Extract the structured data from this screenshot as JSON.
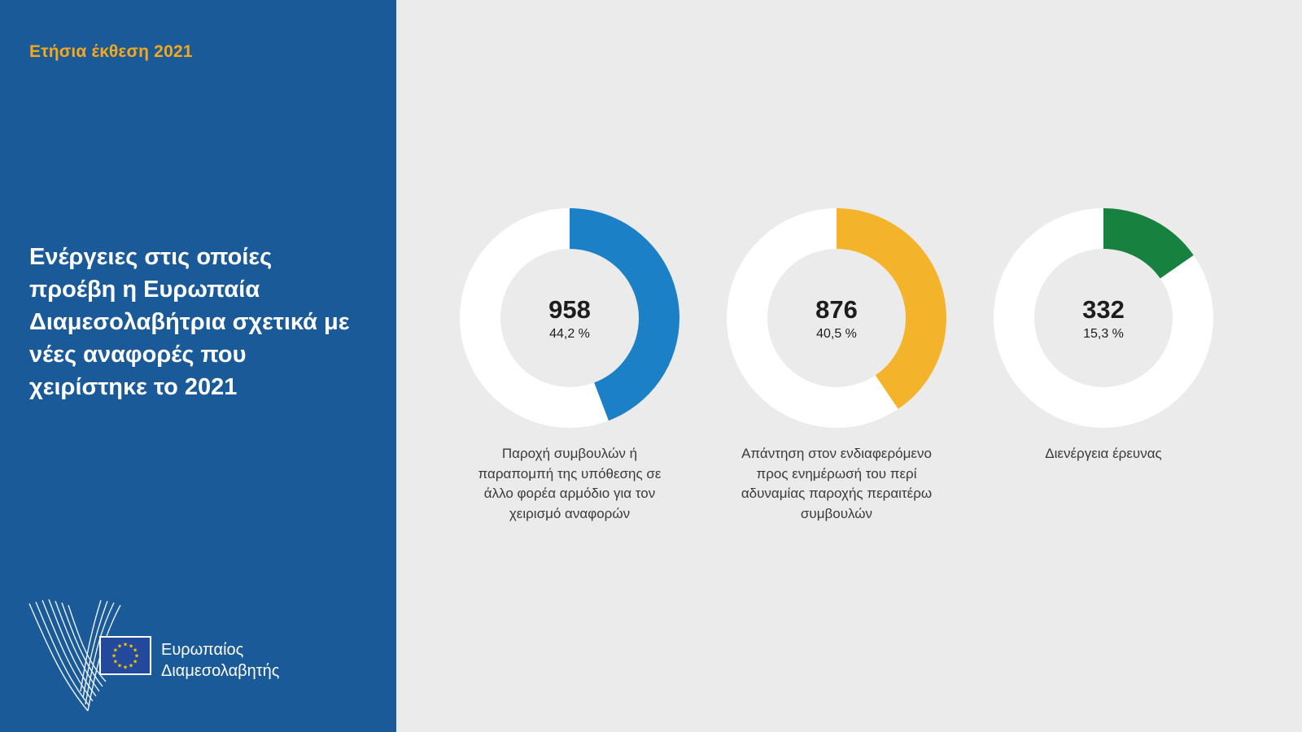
{
  "sidebar": {
    "eyebrow": "Ετήσια έκθεση 2021",
    "title": "Ενέργειες στις οποίες προέβη η Ευρωπαία Διαμεσολαβήτρια σχετικά με νέες αναφορές που χειρίστηκε το 2021",
    "logo": {
      "line1": "Ευρωπαίος",
      "line2": "Διαμεσολαβητής"
    }
  },
  "colors": {
    "sidebar_bg": "#1a5a98",
    "eyebrow_text": "#f5a81c",
    "content_bg": "#ebebeb",
    "donut_ring": "#ffffff",
    "flag_blue": "#23499c",
    "flag_stars": "#ffcc00"
  },
  "chart_data": {
    "type": "pie",
    "title": "Ενέργειες στις οποίες προέβη η Ευρωπαία Διαμεσολαβήτρια σχετικά με νέες αναφορές που χειρίστηκε το 2021",
    "subtitle": "Ετήσια έκθεση 2021",
    "legend_position": "below-each-donut",
    "donut_style": {
      "start_angle_deg": 0,
      "direction": "clockwise",
      "ring_color": "#ffffff"
    },
    "series": [
      {
        "label": "Παροχή συμβουλών ή παραπομπή της υπόθεσης σε άλλο φορέα αρμόδιο για τον χειρισμό αναφορών",
        "value": 958,
        "value_label": "958",
        "pct": 44.2,
        "pct_label": "44,2 %",
        "color": "#1c80c6"
      },
      {
        "label": "Απάντηση στον ενδιαφερόμενο προς ενημέρωσή του περί αδυναμίας παροχής περαιτέρω συμβουλών",
        "value": 876,
        "value_label": "876",
        "pct": 40.5,
        "pct_label": "40,5 %",
        "color": "#f3b32b"
      },
      {
        "label": "Διενέργεια έρευνας",
        "value": 332,
        "value_label": "332",
        "pct": 15.3,
        "pct_label": "15,3 %",
        "color": "#17813f"
      }
    ]
  }
}
